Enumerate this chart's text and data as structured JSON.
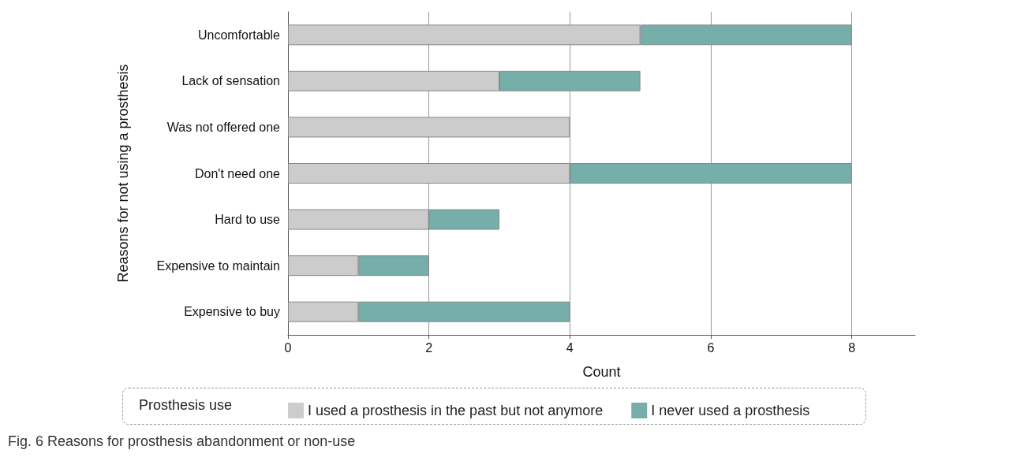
{
  "chart_data": {
    "type": "bar",
    "orientation": "horizontal",
    "stacked": true,
    "categories": [
      "Uncomfortable",
      "Lack of sensation",
      "Was not offered one",
      "Don't need one",
      "Hard to use",
      "Expensive to maintain",
      "Expensive to buy"
    ],
    "series": [
      {
        "name": "I used a prosthesis in the past but not anymore",
        "color": "#cccccc",
        "values": [
          5,
          3,
          4,
          4,
          2,
          1,
          1
        ]
      },
      {
        "name": "I never used a prosthesis",
        "color": "#76aeaa",
        "values": [
          3,
          2,
          null,
          4,
          1,
          1,
          3
        ]
      }
    ],
    "xlim": [
      0,
      8.9
    ],
    "xticks": [
      0,
      2,
      4,
      6,
      8
    ],
    "xlabel": "Count",
    "ylabel": "Reasons for not using a prosthesis",
    "legend_title": "Prosthesis use",
    "legend": "bottom",
    "grid": "x",
    "annotations": [
      "Fig. 6 Reasons for prosthesis abandonment or non-use"
    ]
  }
}
